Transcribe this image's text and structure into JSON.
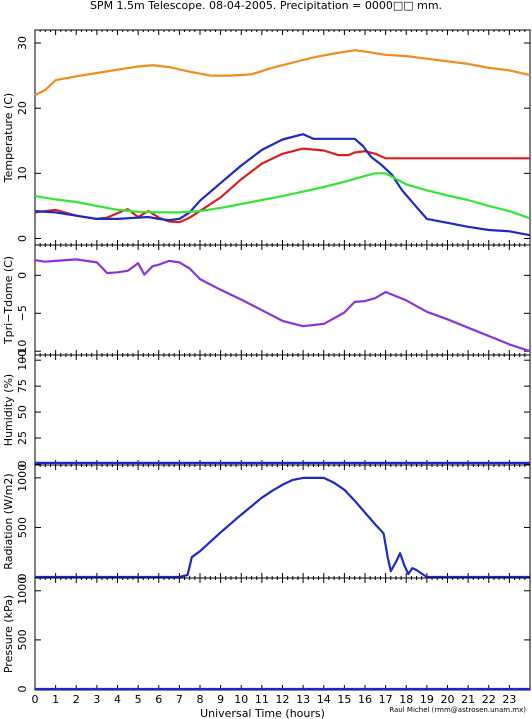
{
  "title": "SPM 1.5m Telescope. 08-04-2005. Precipitation = 0000□□ mm.",
  "credit": "Raul Michel (rmm@astrosen.unam.mx)",
  "xlabel": "Universal Time (hours)",
  "x_ticks": [
    "0",
    "1",
    "2",
    "3",
    "4",
    "5",
    "6",
    "7",
    "8",
    "9",
    "10",
    "11",
    "12",
    "13",
    "14",
    "15",
    "16",
    "17",
    "18",
    "19",
    "20",
    "21",
    "22",
    "23"
  ],
  "colors": {
    "orange": "#f08c1e",
    "red": "#dc1e1e",
    "blue": "#1e28c8",
    "green": "#32e632",
    "purple": "#8c32dc"
  },
  "chart_data": [
    {
      "type": "line",
      "ylabel": "Temperature (C)",
      "xlim": [
        0,
        24
      ],
      "ylim": [
        -1,
        32
      ],
      "yticks": [
        0,
        10,
        20,
        30
      ],
      "series": [
        {
          "color": "orange",
          "x": [
            0,
            0.5,
            1,
            2,
            3,
            4,
            5,
            5.7,
            6.5,
            7.5,
            8.5,
            9.5,
            10.5,
            11.5,
            12.5,
            13.5,
            14.5,
            15.5,
            16.2,
            17,
            18,
            19,
            20,
            21,
            22,
            23,
            24
          ],
          "y": [
            22,
            22.8,
            24.3,
            24.9,
            25.4,
            25.9,
            26.4,
            26.6,
            26.3,
            25.6,
            25.0,
            25.0,
            25.2,
            26.2,
            27.0,
            27.8,
            28.4,
            28.9,
            28.6,
            28.2,
            28.0,
            27.6,
            27.2,
            26.8,
            26.2,
            25.8,
            25.1
          ]
        },
        {
          "color": "red",
          "x": [
            0,
            1,
            2,
            3,
            3.5,
            4,
            4.5,
            5,
            5.5,
            6,
            6.5,
            7,
            7.5,
            8,
            9,
            10,
            11,
            12,
            13,
            14,
            14.7,
            15.2,
            15.5,
            16,
            16.5,
            17,
            18,
            19,
            20,
            21,
            22,
            23,
            24
          ],
          "y": [
            4.0,
            4.4,
            3.5,
            3.0,
            3.2,
            3.9,
            4.5,
            3.3,
            4.2,
            3.2,
            2.6,
            2.5,
            3.2,
            4.2,
            6.3,
            9.1,
            11.5,
            13.0,
            13.8,
            13.5,
            12.8,
            12.8,
            13.2,
            13.4,
            13.0,
            12.3,
            12.3,
            12.3,
            12.3,
            12.3,
            12.3,
            12.3,
            12.3
          ]
        },
        {
          "color": "blue",
          "x": [
            0,
            1,
            2,
            3,
            4,
            5,
            5.5,
            6,
            6.5,
            7,
            7.5,
            8,
            9,
            10,
            11,
            12,
            13,
            13.5,
            14,
            15,
            15.5,
            15.9,
            16.3,
            16.8,
            17.3,
            17.8,
            18.5,
            19,
            20,
            21,
            22,
            23,
            24
          ],
          "y": [
            4.2,
            4.0,
            3.5,
            3.0,
            3.0,
            3.2,
            3.3,
            3.0,
            2.8,
            3.0,
            4.0,
            5.8,
            8.5,
            11.2,
            13.6,
            15.2,
            16.0,
            15.3,
            15.3,
            15.3,
            15.3,
            14.2,
            12.5,
            11.3,
            9.8,
            7.4,
            4.8,
            3.0,
            2.4,
            1.8,
            1.3,
            1.1,
            0.5
          ]
        },
        {
          "color": "green",
          "x": [
            0,
            1,
            2,
            3,
            4,
            5,
            6,
            7,
            8,
            9,
            10,
            11,
            12,
            13,
            14,
            15,
            16,
            16.5,
            17,
            18,
            19,
            20,
            21,
            22,
            23,
            24
          ],
          "y": [
            6.5,
            6.0,
            5.6,
            5.0,
            4.4,
            4.1,
            4.0,
            4.0,
            4.2,
            4.7,
            5.3,
            5.9,
            6.5,
            7.2,
            7.9,
            8.7,
            9.6,
            10.0,
            10.0,
            8.3,
            7.4,
            6.6,
            5.9,
            5.0,
            4.2,
            3.1
          ]
        }
      ]
    },
    {
      "type": "line",
      "ylabel": "Tpri−Tdome (C)",
      "xlim": [
        0,
        24
      ],
      "ylim": [
        -10.5,
        4
      ],
      "yticks": [
        0,
        -5,
        -10
      ],
      "series": [
        {
          "color": "purple",
          "x": [
            0,
            0.5,
            1,
            2,
            3,
            3.5,
            4,
            4.5,
            5,
            5.3,
            5.7,
            6,
            6.5,
            7,
            7.5,
            8,
            9,
            10,
            11,
            12,
            13,
            14,
            15,
            15.5,
            16,
            16.5,
            17,
            18,
            19,
            20,
            21,
            22,
            23,
            24
          ],
          "y": [
            2.0,
            1.8,
            1.9,
            2.1,
            1.7,
            0.3,
            0.4,
            0.6,
            1.6,
            0.1,
            1.2,
            1.4,
            1.9,
            1.7,
            0.9,
            -0.5,
            -1.9,
            -3.2,
            -4.6,
            -6.0,
            -6.7,
            -6.4,
            -4.9,
            -3.5,
            -3.4,
            -3.0,
            -2.2,
            -3.3,
            -4.8,
            -5.8,
            -6.9,
            -8.0,
            -9.1,
            -10.0
          ]
        }
      ]
    },
    {
      "type": "line",
      "ylabel": "Humidity (%)",
      "xlim": [
        0,
        24
      ],
      "ylim": [
        -1,
        105
      ],
      "yticks": [
        0,
        25,
        50,
        75,
        100
      ],
      "series": [
        {
          "color": "blue",
          "x": [
            0,
            24
          ],
          "y": [
            1,
            1
          ]
        }
      ]
    },
    {
      "type": "line",
      "ylabel": "Radiation (W/m2)",
      "xlim": [
        0,
        24
      ],
      "ylim": [
        -10,
        1130
      ],
      "yticks": [
        0,
        500,
        1000
      ],
      "series": [
        {
          "color": "blue",
          "x": [
            0,
            7,
            7.4,
            7.6,
            8,
            9,
            10,
            11,
            11.5,
            12,
            12.5,
            13,
            13.5,
            14,
            14.5,
            15,
            15.5,
            16,
            16.5,
            16.9,
            17.1,
            17.25,
            17.5,
            17.7,
            17.9,
            18.1,
            18.3,
            18.5,
            18.7,
            19,
            24
          ],
          "y": [
            0,
            0,
            20,
            200,
            260,
            450,
            630,
            800,
            870,
            930,
            980,
            1000,
            1000,
            1000,
            950,
            880,
            770,
            650,
            530,
            440,
            200,
            60,
            150,
            240,
            120,
            30,
            90,
            70,
            40,
            0,
            0
          ]
        }
      ]
    },
    {
      "type": "line",
      "ylabel": "Pressure (kPa)",
      "xlim": [
        0,
        24
      ],
      "ylim": [
        -10,
        1130
      ],
      "yticks": [
        0,
        500,
        1000
      ],
      "series": [
        {
          "color": "blue",
          "x": [
            0,
            24
          ],
          "y": [
            0,
            0
          ]
        }
      ]
    }
  ]
}
